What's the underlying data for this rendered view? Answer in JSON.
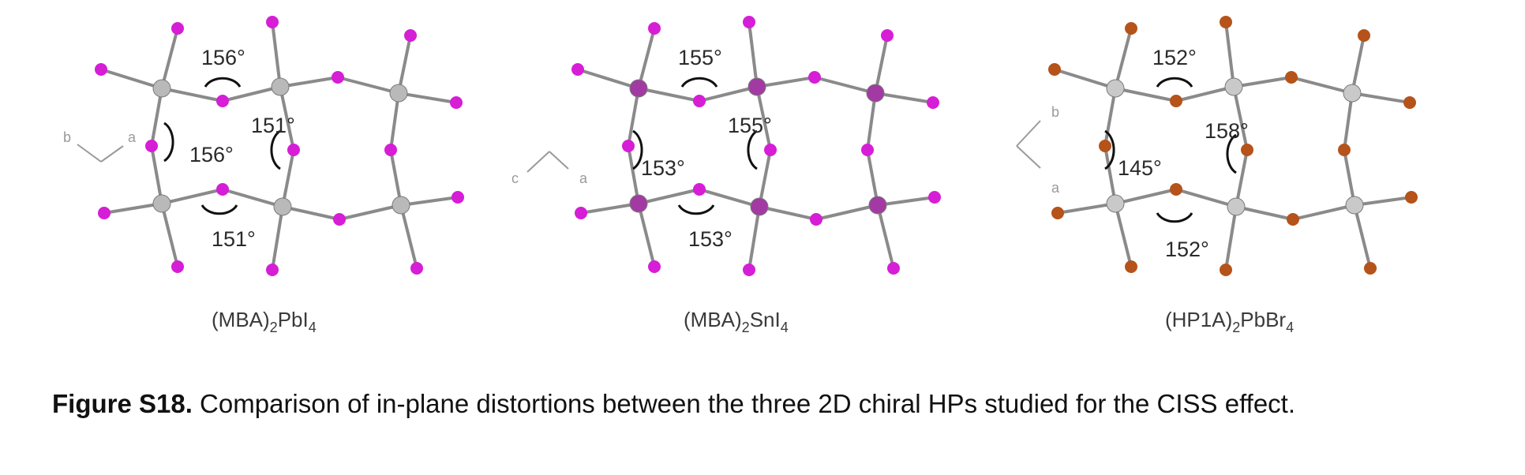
{
  "figure": {
    "panels": [
      {
        "formula": {
          "base": "(MBA)",
          "sub1": "2",
          "mid": "PbI",
          "sub2": "4"
        },
        "angles": [
          "156°",
          "151°",
          "156°",
          "151°"
        ],
        "axes": [
          "b",
          "a"
        ],
        "halide_color": "#d61ed6",
        "metal_color": "#b9b9b9"
      },
      {
        "formula": {
          "base": "(MBA)",
          "sub1": "2",
          "mid": "SnI",
          "sub2": "4"
        },
        "angles": [
          "155°",
          "155°",
          "153°",
          "153°"
        ],
        "axes": [
          "c",
          "a"
        ],
        "halide_color": "#d61ed6",
        "metal_color": "#a33aa3"
      },
      {
        "formula": {
          "base": "(HP1A)",
          "sub1": "2",
          "mid": "PbBr",
          "sub2": "4"
        },
        "angles": [
          "152°",
          "158°",
          "145°",
          "152°"
        ],
        "axes": [
          "b",
          "a"
        ],
        "halide_color": "#b5531a",
        "metal_color": "#c9c9c9"
      }
    ],
    "bond_color": "#8a8a8a"
  },
  "caption": {
    "label": "Figure S18.",
    "text": " Comparison of in-plane distortions between the three 2D chiral HPs studied for the CISS effect."
  }
}
